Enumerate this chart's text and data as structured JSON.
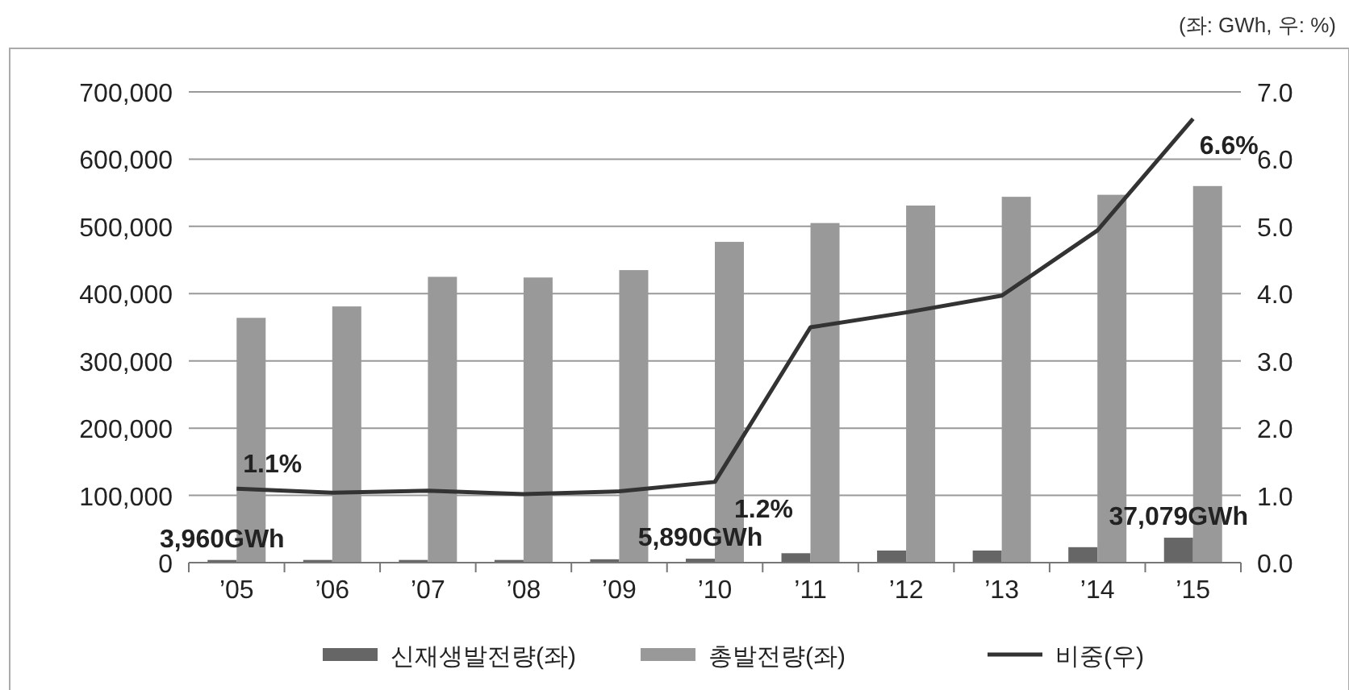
{
  "chart_data": {
    "type": "bar",
    "categories": [
      "’05",
      "’06",
      "’07",
      "’08",
      "’09",
      "’10",
      "’11",
      "’12",
      "’13",
      "’14",
      "’15"
    ],
    "series": [
      {
        "name": "신재생발전량(좌)",
        "color": "#666666",
        "values": [
          3960,
          4000,
          4000,
          4000,
          5000,
          5890,
          14000,
          18000,
          18000,
          23000,
          37079
        ],
        "value_labels": [
          "3,960GWh",
          null,
          null,
          null,
          null,
          "5,890GWh",
          null,
          null,
          null,
          null,
          "37,079GWh"
        ]
      },
      {
        "name": "총발전량(좌)",
        "color": "#999999",
        "values": [
          364000,
          381000,
          425000,
          424000,
          435000,
          477000,
          505000,
          531000,
          544000,
          547000,
          560000
        ]
      },
      {
        "name": "비중(우)",
        "type": "line",
        "axis": "y2",
        "color": "#333333",
        "values": [
          1.1,
          1.04,
          1.07,
          1.02,
          1.06,
          1.2,
          3.5,
          3.72,
          3.97,
          4.94,
          6.6
        ],
        "value_labels": [
          "1.1%",
          null,
          null,
          null,
          null,
          "1.2%",
          null,
          null,
          null,
          null,
          "6.6%"
        ]
      }
    ],
    "ylim": [
      0,
      700000
    ],
    "yticks": [
      {
        "value": 0,
        "label": "0"
      },
      {
        "value": 100000,
        "label": "100,000"
      },
      {
        "value": 200000,
        "label": "200,000"
      },
      {
        "value": 300000,
        "label": "300,000"
      },
      {
        "value": 400000,
        "label": "400,000"
      },
      {
        "value": 500000,
        "label": "500,000"
      },
      {
        "value": 600000,
        "label": "600,000"
      },
      {
        "value": 700000,
        "label": "700,000"
      }
    ],
    "y2lim": [
      0,
      7
    ],
    "y2ticks": [
      {
        "value": 0,
        "label": "0.0"
      },
      {
        "value": 1,
        "label": "1.0"
      },
      {
        "value": 2,
        "label": "2.0"
      },
      {
        "value": 3,
        "label": "3.0"
      },
      {
        "value": 4,
        "label": "4.0"
      },
      {
        "value": 5,
        "label": "5.0"
      },
      {
        "value": 6,
        "label": "6.0"
      },
      {
        "value": 7,
        "label": "7.0"
      }
    ],
    "grid": "y",
    "legend": "bottom",
    "annotations": [
      "(좌: GWh, 우: %)"
    ]
  }
}
